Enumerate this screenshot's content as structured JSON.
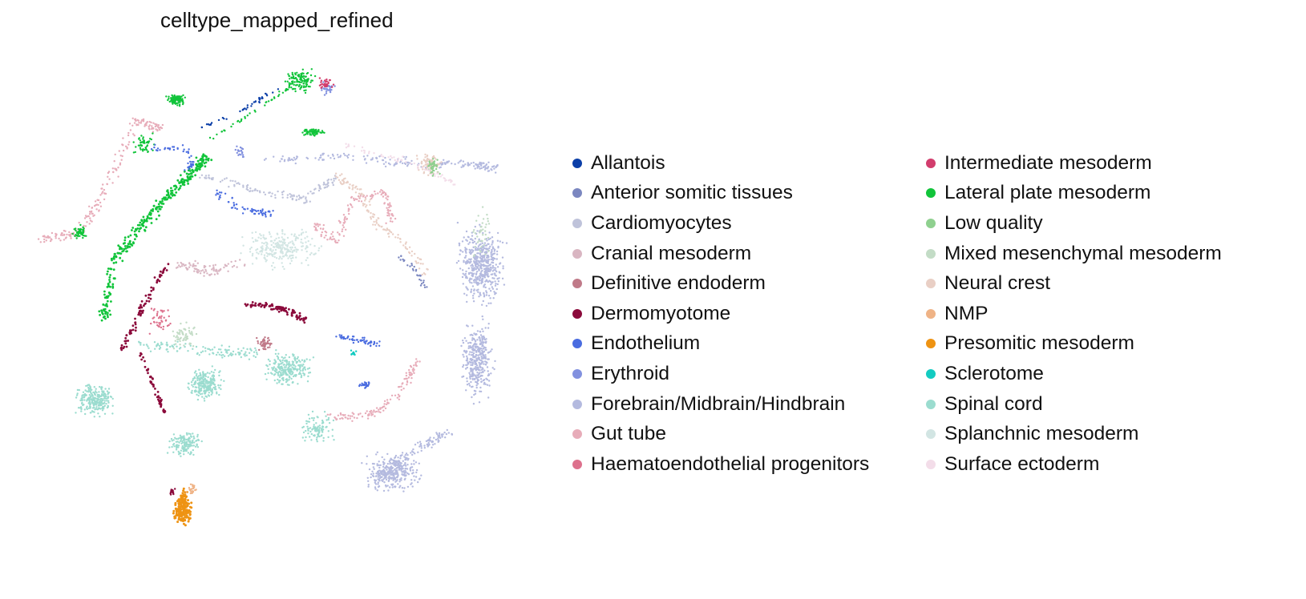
{
  "chart_data": {
    "type": "scatter",
    "title": "celltype_mapped_refined",
    "xlabel": "",
    "ylabel": "",
    "axes_visible": false,
    "grid": false,
    "legend_placement": "right, two columns",
    "series": [
      {
        "name": "Allantois",
        "color": "#0b3fa8"
      },
      {
        "name": "Anterior somitic tissues",
        "color": "#7b87c0"
      },
      {
        "name": "Cardiomyocytes",
        "color": "#bfc3da"
      },
      {
        "name": "Cranial mesoderm",
        "color": "#d9b6c2"
      },
      {
        "name": "Definitive endoderm",
        "color": "#c07a89"
      },
      {
        "name": "Dermomyotome",
        "color": "#8b0a3b"
      },
      {
        "name": "Endothelium",
        "color": "#4a6ce0"
      },
      {
        "name": "Erythroid",
        "color": "#8291df"
      },
      {
        "name": "Forebrain/Midbrain/Hindbrain",
        "color": "#b4badf"
      },
      {
        "name": "Gut tube",
        "color": "#e7acb9"
      },
      {
        "name": "Haematoendothelial progenitors",
        "color": "#dd718d"
      },
      {
        "name": "Intermediate mesoderm",
        "color": "#d23d6d"
      },
      {
        "name": "Lateral plate mesoderm",
        "color": "#11c43a"
      },
      {
        "name": "Low quality",
        "color": "#8fd08f"
      },
      {
        "name": "Mixed mesenchymal mesoderm",
        "color": "#c3dcc6"
      },
      {
        "name": "Neural crest",
        "color": "#e9cfc5"
      },
      {
        "name": "NMP",
        "color": "#efb386"
      },
      {
        "name": "Presomitic mesoderm",
        "color": "#ee9313"
      },
      {
        "name": "Sclerotome",
        "color": "#13cbc1"
      },
      {
        "name": "Spinal cord",
        "color": "#9bdccf"
      },
      {
        "name": "Splanchnic mesoderm",
        "color": "#d2e5e3"
      },
      {
        "name": "Surface ectoderm",
        "color": "#f3dde9"
      }
    ]
  }
}
